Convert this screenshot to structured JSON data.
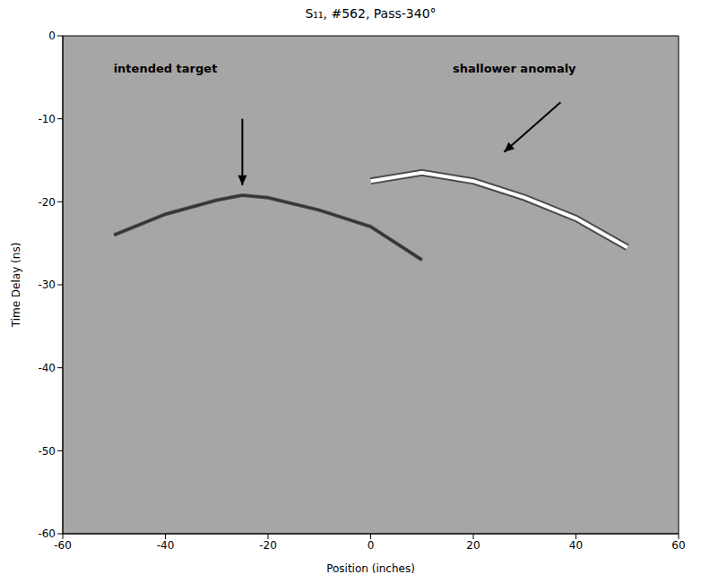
{
  "chart_data": {
    "type": "line",
    "title": "S₁₁, #562, Pass-340°",
    "x_label": "Position (inches)",
    "y_label": "Time Delay (ns)",
    "x": [
      -60,
      -50,
      -40,
      -30,
      -25,
      -20,
      -10,
      0,
      10,
      20,
      30,
      40,
      50
    ],
    "series": [
      {
        "color": "#333333",
        "values": [
          null,
          -24,
          -21.5,
          -19.8,
          -19.2,
          -19.5,
          -21,
          -23,
          -27,
          null,
          null,
          null,
          null
        ]
      },
      {
        "color": "#ffffff",
        "values": [
          null,
          null,
          null,
          null,
          null,
          null,
          null,
          -17.5,
          -16.5,
          -17.5,
          -19.5,
          -22,
          -25.5
        ]
      }
    ],
    "xlim": [
      -60,
      60
    ],
    "xticks": [
      -60,
      -40,
      -20,
      0,
      20,
      40,
      60
    ],
    "ylim": [
      -60,
      0
    ],
    "yticks": [
      0,
      -10,
      -20,
      -30,
      -40,
      -50,
      -60
    ],
    "grid": false,
    "annotations": [
      {
        "text": "intended target",
        "text_xy": [
          -40,
          -4
        ],
        "arrow_from": [
          -25,
          -10
        ],
        "arrow_to": [
          -25,
          -18
        ]
      },
      {
        "text": "shallower anomaly",
        "text_xy": [
          28,
          -4
        ],
        "arrow_from": [
          37,
          -8
        ],
        "arrow_to": [
          26,
          -14
        ]
      }
    ]
  }
}
